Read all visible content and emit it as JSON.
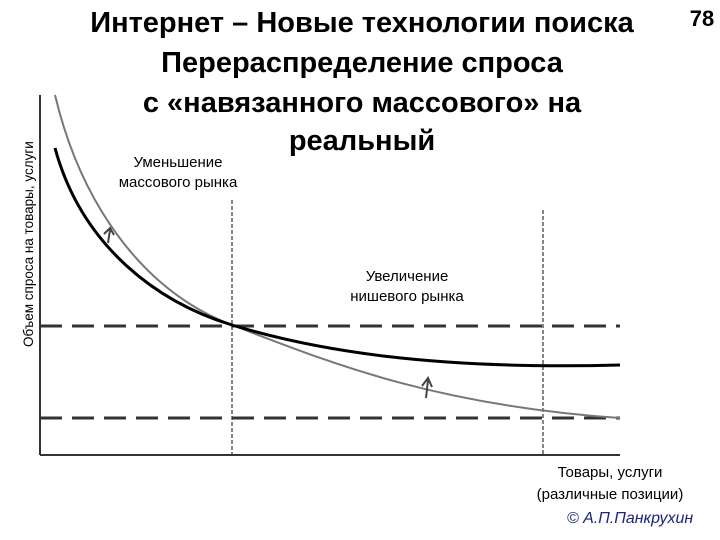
{
  "header": {
    "title_lines": [
      "Интернет – Новые технологии поиска",
      "Перераспределение спроса",
      "с «навязанного массового» на",
      "реальный"
    ],
    "page_number": "78"
  },
  "axes": {
    "y_label": "Объем спроса на товары, услуги",
    "x_label_lines": [
      "Товары, услуги",
      "(различные позиции)"
    ]
  },
  "annotations": {
    "mass_market_lines": [
      "Уменьшение",
      "массового рынка"
    ],
    "niche_market_lines": [
      "Увеличение",
      "нишевого рынка"
    ]
  },
  "footer": {
    "author": "© А.П.Панкрухин"
  }
}
